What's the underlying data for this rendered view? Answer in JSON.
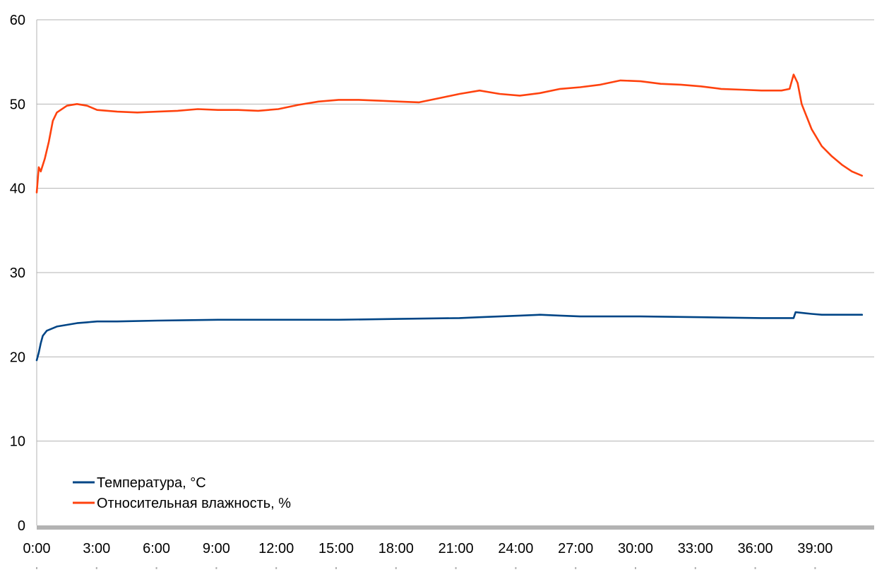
{
  "chart_data": {
    "type": "line",
    "title": "",
    "xlabel": "",
    "ylabel": "",
    "x_unit": "minutes",
    "x_range": [
      0,
      41
    ],
    "ylim": [
      0,
      60
    ],
    "y_ticks": [
      "0",
      "10",
      "20",
      "30",
      "40",
      "50",
      "60"
    ],
    "x_tick_labels": [
      "0:00",
      "3:00",
      "6:00",
      "9:00",
      "12:00",
      "15:00",
      "18:00",
      "21:00",
      "24:00",
      "27:00",
      "30:00",
      "33:00",
      "36:00",
      "39:00"
    ],
    "grid": "horizontal",
    "legend_position": "bottom-left",
    "series": [
      {
        "name": "Температура, °C",
        "color": "#004586",
        "x": [
          0,
          0.1,
          0.2,
          0.3,
          0.5,
          0.8,
          1.0,
          1.5,
          2.0,
          2.5,
          3.0,
          4.0,
          6.0,
          9.0,
          12.0,
          15.0,
          18.0,
          21.0,
          22.0,
          24.0,
          25.0,
          26.0,
          27.0,
          30.0,
          33.0,
          36.0,
          37.6,
          37.7,
          38.5,
          39.0,
          41.0
        ],
        "values": [
          19.6,
          20.5,
          21.6,
          22.5,
          23.1,
          23.4,
          23.6,
          23.8,
          24.0,
          24.1,
          24.2,
          24.2,
          24.3,
          24.4,
          24.4,
          24.4,
          24.5,
          24.6,
          24.7,
          24.9,
          25.0,
          24.9,
          24.8,
          24.8,
          24.7,
          24.6,
          24.6,
          25.3,
          25.1,
          25.0,
          25.0
        ]
      },
      {
        "name": "Относительная влажность, %",
        "color": "#ff420e",
        "x": [
          0,
          0.1,
          0.2,
          0.4,
          0.6,
          0.8,
          1.0,
          1.5,
          2.0,
          2.5,
          3.0,
          4.0,
          5.0,
          6.0,
          7.0,
          8.0,
          9.0,
          10.0,
          11.0,
          12.0,
          13.0,
          14.0,
          15.0,
          16.0,
          17.0,
          18.0,
          19.0,
          20.0,
          21.0,
          22.0,
          23.0,
          24.0,
          25.0,
          26.0,
          27.0,
          28.0,
          29.0,
          30.0,
          31.0,
          32.0,
          33.0,
          34.0,
          35.0,
          36.0,
          37.0,
          37.4,
          37.6,
          37.8,
          38.0,
          38.5,
          39.0,
          39.5,
          40.0,
          40.5,
          41.0
        ],
        "values": [
          39.5,
          42.5,
          42.0,
          43.5,
          45.5,
          48.0,
          49.0,
          49.8,
          50.0,
          49.8,
          49.3,
          49.1,
          49.0,
          49.1,
          49.2,
          49.4,
          49.3,
          49.3,
          49.2,
          49.4,
          49.9,
          50.3,
          50.5,
          50.5,
          50.4,
          50.3,
          50.2,
          50.7,
          51.2,
          51.6,
          51.2,
          51.0,
          51.3,
          51.8,
          52.0,
          52.3,
          52.8,
          52.7,
          52.4,
          52.3,
          52.1,
          51.8,
          51.7,
          51.6,
          51.6,
          51.8,
          53.5,
          52.5,
          50.0,
          47.0,
          45.0,
          43.8,
          42.8,
          42.0,
          41.5
        ]
      }
    ]
  }
}
